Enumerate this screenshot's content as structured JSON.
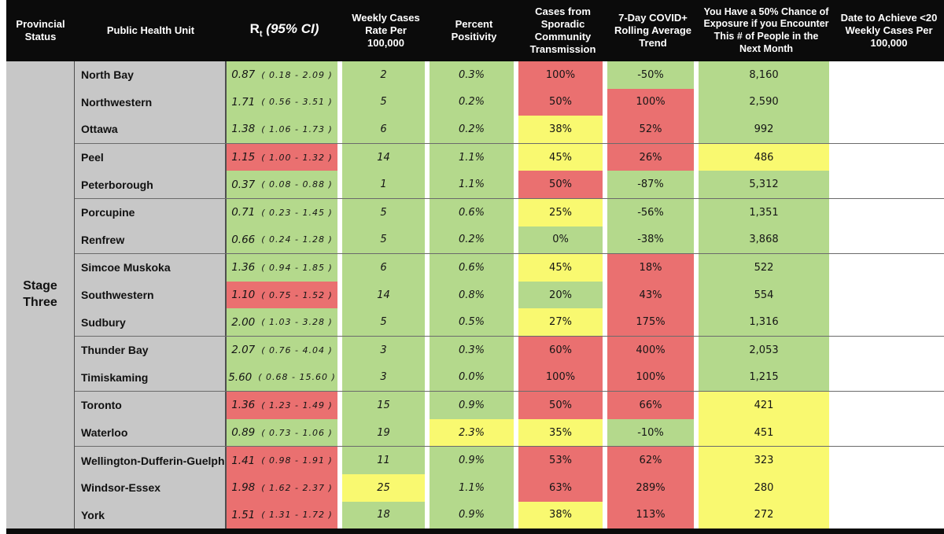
{
  "header": {
    "provincial_status": "Provincial Status",
    "public_health_unit": "Public Health Unit",
    "rt_symbol": "R",
    "rt_subscript": "t",
    "rt_ci": "(95% CI)",
    "weekly_cases": "Weekly Cases Rate Per 100,000",
    "percent_positivity": "Percent Positivity",
    "sporadic": "Cases from Sporadic Community Transmission",
    "trend": "7-Day COVID+ Rolling Average Trend",
    "exposure": "You Have a 50% Chance of Exposure if you Encounter This # of People in the Next Month",
    "date_to_achieve": "Date to Achieve <20 Weekly Cases Per 100,000"
  },
  "provincial_status_value": "Stage Three",
  "palette": {
    "green": "#b4d98c",
    "yellow": "#f9f970",
    "red": "#ea7070",
    "gray": "#c7c7c7",
    "header_bg": "#0b0b0b",
    "header_text": "#ffffff"
  },
  "rows": [
    {
      "phu": "North Bay",
      "rt": "0.87",
      "ci": "( 0.18 - 2.09 )",
      "weekly": "2",
      "pct": "0.3%",
      "sporadic": "100%",
      "trend": "-50%",
      "exposure": "8,160",
      "date": "",
      "group_start": false,
      "colors": {
        "rt": "green",
        "weekly": "green",
        "pct": "green",
        "sporadic": "red",
        "trend": "green",
        "exposure": "green"
      }
    },
    {
      "phu": "Northwestern",
      "rt": "1.71",
      "ci": "( 0.56 - 3.51 )",
      "weekly": "5",
      "pct": "0.2%",
      "sporadic": "50%",
      "trend": "100%",
      "exposure": "2,590",
      "date": "",
      "group_start": false,
      "colors": {
        "rt": "green",
        "weekly": "green",
        "pct": "green",
        "sporadic": "red",
        "trend": "red",
        "exposure": "green"
      }
    },
    {
      "phu": "Ottawa",
      "rt": "1.38",
      "ci": "( 1.06 - 1.73 )",
      "weekly": "6",
      "pct": "0.2%",
      "sporadic": "38%",
      "trend": "52%",
      "exposure": "992",
      "date": "",
      "group_start": false,
      "colors": {
        "rt": "green",
        "weekly": "green",
        "pct": "green",
        "sporadic": "yellow",
        "trend": "red",
        "exposure": "green"
      }
    },
    {
      "phu": "Peel",
      "rt": "1.15",
      "ci": "( 1.00 - 1.32 )",
      "weekly": "14",
      "pct": "1.1%",
      "sporadic": "45%",
      "trend": "26%",
      "exposure": "486",
      "date": "",
      "group_start": true,
      "colors": {
        "rt": "red",
        "weekly": "green",
        "pct": "green",
        "sporadic": "yellow",
        "trend": "red",
        "exposure": "yellow"
      }
    },
    {
      "phu": "Peterborough",
      "rt": "0.37",
      "ci": "( 0.08 - 0.88 )",
      "weekly": "1",
      "pct": "1.1%",
      "sporadic": "50%",
      "trend": "-87%",
      "exposure": "5,312",
      "date": "",
      "group_start": false,
      "colors": {
        "rt": "green",
        "weekly": "green",
        "pct": "green",
        "sporadic": "red",
        "trend": "green",
        "exposure": "green"
      }
    },
    {
      "phu": "Porcupine",
      "rt": "0.71",
      "ci": "( 0.23 - 1.45 )",
      "weekly": "5",
      "pct": "0.6%",
      "sporadic": "25%",
      "trend": "-56%",
      "exposure": "1,351",
      "date": "",
      "group_start": true,
      "colors": {
        "rt": "green",
        "weekly": "green",
        "pct": "green",
        "sporadic": "yellow",
        "trend": "green",
        "exposure": "green"
      }
    },
    {
      "phu": "Renfrew",
      "rt": "0.66",
      "ci": "( 0.24 - 1.28 )",
      "weekly": "5",
      "pct": "0.2%",
      "sporadic": "0%",
      "trend": "-38%",
      "exposure": "3,868",
      "date": "",
      "group_start": false,
      "colors": {
        "rt": "green",
        "weekly": "green",
        "pct": "green",
        "sporadic": "green",
        "trend": "green",
        "exposure": "green"
      }
    },
    {
      "phu": "Simcoe Muskoka",
      "rt": "1.36",
      "ci": "( 0.94 - 1.85 )",
      "weekly": "6",
      "pct": "0.6%",
      "sporadic": "45%",
      "trend": "18%",
      "exposure": "522",
      "date": "",
      "group_start": true,
      "colors": {
        "rt": "green",
        "weekly": "green",
        "pct": "green",
        "sporadic": "yellow",
        "trend": "red",
        "exposure": "green"
      }
    },
    {
      "phu": "Southwestern",
      "rt": "1.10",
      "ci": "( 0.75 - 1.52 )",
      "weekly": "14",
      "pct": "0.8%",
      "sporadic": "20%",
      "trend": "43%",
      "exposure": "554",
      "date": "",
      "group_start": false,
      "colors": {
        "rt": "red",
        "weekly": "green",
        "pct": "green",
        "sporadic": "green",
        "trend": "red",
        "exposure": "green"
      }
    },
    {
      "phu": "Sudbury",
      "rt": "2.00",
      "ci": "( 1.03 - 3.28 )",
      "weekly": "5",
      "pct": "0.5%",
      "sporadic": "27%",
      "trend": "175%",
      "exposure": "1,316",
      "date": "",
      "group_start": false,
      "colors": {
        "rt": "green",
        "weekly": "green",
        "pct": "green",
        "sporadic": "yellow",
        "trend": "red",
        "exposure": "green"
      }
    },
    {
      "phu": "Thunder Bay",
      "rt": "2.07",
      "ci": "( 0.76 - 4.04 )",
      "weekly": "3",
      "pct": "0.3%",
      "sporadic": "60%",
      "trend": "400%",
      "exposure": "2,053",
      "date": "",
      "group_start": true,
      "colors": {
        "rt": "green",
        "weekly": "green",
        "pct": "green",
        "sporadic": "red",
        "trend": "red",
        "exposure": "green"
      }
    },
    {
      "phu": "Timiskaming",
      "rt": "5.60",
      "ci": "( 0.68 - 15.60 )",
      "weekly": "3",
      "pct": "0.0%",
      "sporadic": "100%",
      "trend": "100%",
      "exposure": "1,215",
      "date": "",
      "group_start": false,
      "colors": {
        "rt": "green",
        "weekly": "green",
        "pct": "green",
        "sporadic": "red",
        "trend": "red",
        "exposure": "green"
      }
    },
    {
      "phu": "Toronto",
      "rt": "1.36",
      "ci": "( 1.23 - 1.49 )",
      "weekly": "15",
      "pct": "0.9%",
      "sporadic": "50%",
      "trend": "66%",
      "exposure": "421",
      "date": "",
      "group_start": true,
      "colors": {
        "rt": "red",
        "weekly": "green",
        "pct": "green",
        "sporadic": "red",
        "trend": "red",
        "exposure": "yellow"
      }
    },
    {
      "phu": "Waterloo",
      "rt": "0.89",
      "ci": "( 0.73 - 1.06 )",
      "weekly": "19",
      "pct": "2.3%",
      "sporadic": "35%",
      "trend": "-10%",
      "exposure": "451",
      "date": "",
      "group_start": false,
      "colors": {
        "rt": "green",
        "weekly": "green",
        "pct": "yellow",
        "sporadic": "yellow",
        "trend": "green",
        "exposure": "yellow"
      }
    },
    {
      "phu": "Wellington-Dufferin-Guelph",
      "rt": "1.41",
      "ci": "( 0.98 - 1.91 )",
      "weekly": "11",
      "pct": "0.9%",
      "sporadic": "53%",
      "trend": "62%",
      "exposure": "323",
      "date": "",
      "group_start": true,
      "colors": {
        "rt": "red",
        "weekly": "green",
        "pct": "green",
        "sporadic": "red",
        "trend": "red",
        "exposure": "yellow"
      }
    },
    {
      "phu": "Windsor-Essex",
      "rt": "1.98",
      "ci": "( 1.62 - 2.37 )",
      "weekly": "25",
      "pct": "1.1%",
      "sporadic": "63%",
      "trend": "289%",
      "exposure": "280",
      "date": "",
      "group_start": false,
      "colors": {
        "rt": "red",
        "weekly": "yellow",
        "pct": "green",
        "sporadic": "red",
        "trend": "red",
        "exposure": "yellow"
      }
    },
    {
      "phu": "York",
      "rt": "1.51",
      "ci": "( 1.31 - 1.72 )",
      "weekly": "18",
      "pct": "0.9%",
      "sporadic": "38%",
      "trend": "113%",
      "exposure": "272",
      "date": "",
      "group_start": false,
      "colors": {
        "rt": "red",
        "weekly": "green",
        "pct": "green",
        "sporadic": "yellow",
        "trend": "red",
        "exposure": "yellow"
      }
    }
  ],
  "chart_data": {
    "type": "table",
    "title": "Ontario Public Health Unit COVID-19 status table",
    "provincial_status_all_rows": "Stage Three",
    "columns": [
      "Provincial Status",
      "Public Health Unit",
      "Rt (95% CI)",
      "Weekly Cases Rate Per 100,000",
      "Percent Positivity",
      "Cases from Sporadic Community Transmission",
      "7-Day COVID+ Rolling Average Trend",
      "You Have a 50% Chance of Exposure if you Encounter This # of People in the Next Month",
      "Date to Achieve <20 Weekly Cases Per 100,000"
    ],
    "rows": [
      [
        "North Bay",
        "0.87 ( 0.18 - 2.09 )",
        "2",
        "0.3%",
        "100%",
        "-50%",
        "8,160",
        ""
      ],
      [
        "Northwestern",
        "1.71 ( 0.56 - 3.51 )",
        "5",
        "0.2%",
        "50%",
        "100%",
        "2,590",
        ""
      ],
      [
        "Ottawa",
        "1.38 ( 1.06 - 1.73 )",
        "6",
        "0.2%",
        "38%",
        "52%",
        "992",
        ""
      ],
      [
        "Peel",
        "1.15 ( 1.00 - 1.32 )",
        "14",
        "1.1%",
        "45%",
        "26%",
        "486",
        ""
      ],
      [
        "Peterborough",
        "0.37 ( 0.08 - 0.88 )",
        "1",
        "1.1%",
        "50%",
        "-87%",
        "5,312",
        ""
      ],
      [
        "Porcupine",
        "0.71 ( 0.23 - 1.45 )",
        "5",
        "0.6%",
        "25%",
        "-56%",
        "1,351",
        ""
      ],
      [
        "Renfrew",
        "0.66 ( 0.24 - 1.28 )",
        "5",
        "0.2%",
        "0%",
        "-38%",
        "3,868",
        ""
      ],
      [
        "Simcoe Muskoka",
        "1.36 ( 0.94 - 1.85 )",
        "6",
        "0.6%",
        "45%",
        "18%",
        "522",
        ""
      ],
      [
        "Southwestern",
        "1.10 ( 0.75 - 1.52 )",
        "14",
        "0.8%",
        "20%",
        "43%",
        "554",
        ""
      ],
      [
        "Sudbury",
        "2.00 ( 1.03 - 3.28 )",
        "5",
        "0.5%",
        "27%",
        "175%",
        "1,316",
        ""
      ],
      [
        "Thunder Bay",
        "2.07 ( 0.76 - 4.04 )",
        "3",
        "0.3%",
        "60%",
        "400%",
        "2,053",
        ""
      ],
      [
        "Timiskaming",
        "5.60 ( 0.68 - 15.60 )",
        "3",
        "0.0%",
        "100%",
        "100%",
        "1,215",
        ""
      ],
      [
        "Toronto",
        "1.36 ( 1.23 - 1.49 )",
        "15",
        "0.9%",
        "50%",
        "66%",
        "421",
        ""
      ],
      [
        "Waterloo",
        "0.89 ( 0.73 - 1.06 )",
        "19",
        "2.3%",
        "35%",
        "-10%",
        "451",
        ""
      ],
      [
        "Wellington-Dufferin-Guelph",
        "1.41 ( 0.98 - 1.91 )",
        "11",
        "0.9%",
        "53%",
        "62%",
        "323",
        ""
      ],
      [
        "Windsor-Essex",
        "1.98 ( 1.62 - 2.37 )",
        "25",
        "1.1%",
        "63%",
        "289%",
        "280",
        ""
      ],
      [
        "York",
        "1.51 ( 1.31 - 1.72 )",
        "18",
        "0.9%",
        "38%",
        "113%",
        "272",
        ""
      ]
    ]
  }
}
